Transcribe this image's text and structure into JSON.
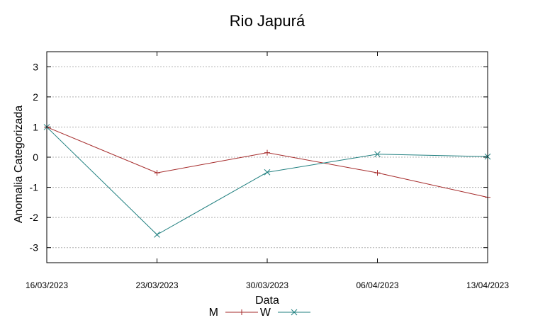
{
  "chart_data": {
    "type": "line",
    "title": "Rio Japurá",
    "xlabel": "Data",
    "ylabel": "Anomalia Categorizada",
    "categories": [
      "16/03/2023",
      "23/03/2023",
      "30/03/2023",
      "06/04/2023",
      "13/04/2023"
    ],
    "ylim": [
      -3.5,
      3.5
    ],
    "yticks": [
      3,
      2,
      1,
      0,
      -1,
      -2,
      -3
    ],
    "grid": true,
    "legend_position": "bottom-center",
    "series": [
      {
        "name": "M",
        "color": "#a52a2a",
        "marker": "plus",
        "values": [
          1.0,
          -0.52,
          0.15,
          -0.52,
          -1.33
        ]
      },
      {
        "name": "W",
        "color": "#1f7f7f",
        "marker": "x",
        "values": [
          1.0,
          -2.57,
          -0.5,
          0.1,
          0.02
        ]
      }
    ]
  }
}
